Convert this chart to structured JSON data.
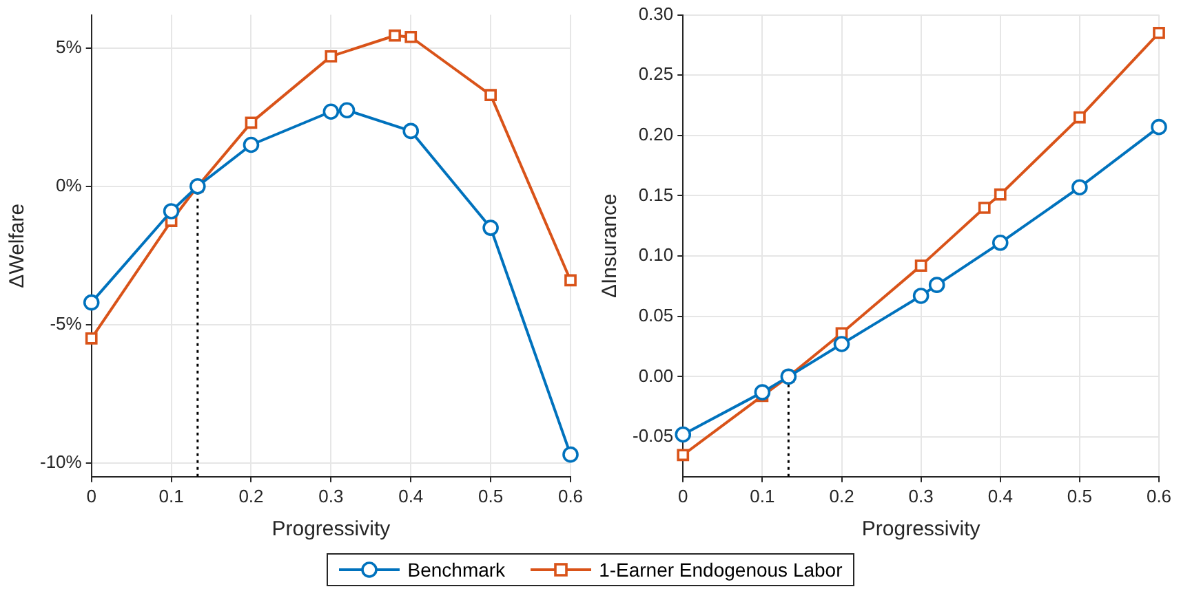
{
  "chart_data": [
    {
      "type": "line",
      "xlabel": "Progressivity",
      "ylabel": "ΔWelfare",
      "xlim": [
        0,
        0.6
      ],
      "xticks": [
        0,
        0.1,
        0.2,
        0.3,
        0.4,
        0.5,
        0.6
      ],
      "ylim": [
        -10.5,
        6.2
      ],
      "yticks": [
        {
          "value": -10,
          "label": "-10%"
        },
        {
          "value": -5,
          "label": "-5%"
        },
        {
          "value": 0,
          "label": "0%"
        },
        {
          "value": 5,
          "label": "5%"
        }
      ],
      "grid": true,
      "legend": "bottom",
      "series": [
        {
          "name": "Benchmark",
          "color": "#0072bd",
          "marker": "circle",
          "x": [
            0,
            0.1,
            0.133,
            0.2,
            0.3,
            0.32,
            0.4,
            0.5,
            0.6
          ],
          "values": [
            -4.2,
            -0.9,
            0,
            1.5,
            2.7,
            2.75,
            2.0,
            -1.5,
            -9.7
          ]
        },
        {
          "name": "1-Earner Endogenous Labor",
          "color": "#d95319",
          "marker": "square",
          "x": [
            0,
            0.1,
            0.133,
            0.2,
            0.3,
            0.38,
            0.4,
            0.5,
            0.6
          ],
          "values": [
            -5.5,
            -1.25,
            0,
            2.3,
            4.7,
            5.45,
            5.4,
            3.3,
            -3.4
          ]
        },
        {
          "color": "#000000",
          "marker": "none",
          "line_style": "dotted",
          "x": [
            0.133,
            0.133
          ],
          "values": [
            -10.5,
            0
          ]
        }
      ]
    },
    {
      "type": "line",
      "xlabel": "Progressivity",
      "ylabel": "ΔInsurance",
      "xlim": [
        0,
        0.6
      ],
      "xticks": [
        0,
        0.1,
        0.2,
        0.3,
        0.4,
        0.5,
        0.6
      ],
      "ylim": [
        -0.083,
        0.3
      ],
      "yticks": [
        {
          "value": -0.05,
          "label": "-0.05"
        },
        {
          "value": 0,
          "label": "0.00"
        },
        {
          "value": 0.05,
          "label": "0.05"
        },
        {
          "value": 0.1,
          "label": "0.10"
        },
        {
          "value": 0.15,
          "label": "0.15"
        },
        {
          "value": 0.2,
          "label": "0.20"
        },
        {
          "value": 0.25,
          "label": "0.25"
        },
        {
          "value": 0.3,
          "label": "0.30"
        }
      ],
      "grid": true,
      "series": [
        {
          "color": "#0072bd",
          "marker": "circle",
          "x": [
            0,
            0.1,
            0.133,
            0.2,
            0.3,
            0.32,
            0.4,
            0.5,
            0.6
          ],
          "values": [
            -0.048,
            -0.013,
            0,
            0.027,
            0.067,
            0.076,
            0.111,
            0.157,
            0.207
          ]
        },
        {
          "color": "#d95319",
          "marker": "square",
          "x": [
            0,
            0.1,
            0.133,
            0.2,
            0.3,
            0.38,
            0.4,
            0.5,
            0.6
          ],
          "values": [
            -0.065,
            -0.016,
            0,
            0.036,
            0.092,
            0.14,
            0.151,
            0.215,
            0.285
          ]
        },
        {
          "color": "#000000",
          "marker": "none",
          "line_style": "dotted",
          "x": [
            0.133,
            0.133
          ],
          "values": [
            -0.083,
            0
          ]
        }
      ]
    }
  ]
}
